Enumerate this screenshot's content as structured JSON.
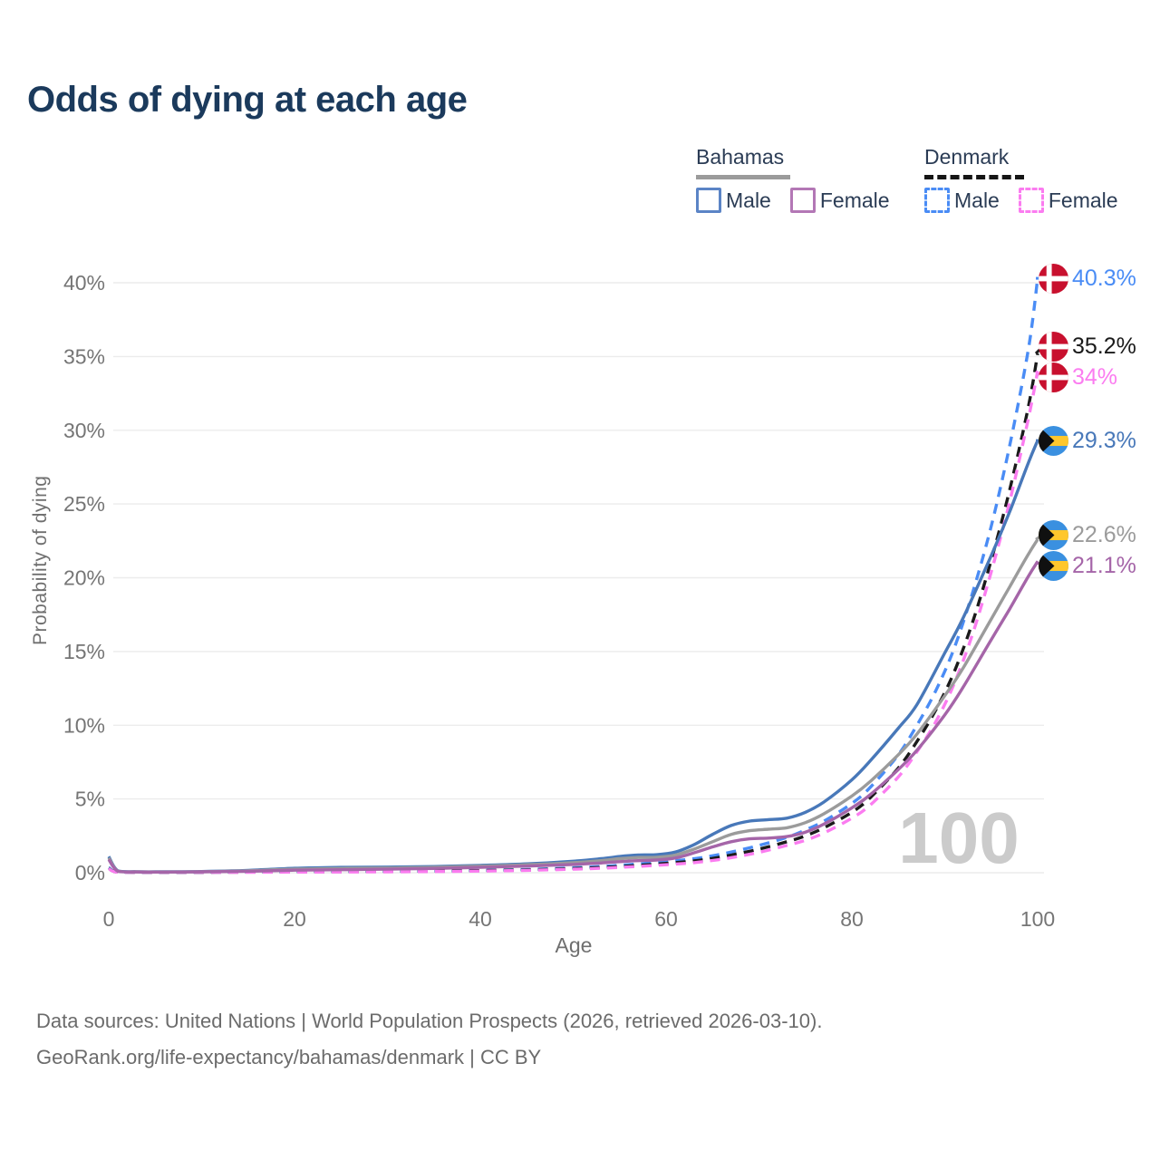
{
  "header": {
    "title": "Odds of dying at each age"
  },
  "legend": {
    "groups": [
      {
        "country": "Bahamas",
        "style": "solid",
        "items": [
          {
            "label": "Male"
          },
          {
            "label": "Female"
          }
        ]
      },
      {
        "country": "Denmark",
        "style": "dashed",
        "items": [
          {
            "label": "Male"
          },
          {
            "label": "Female"
          }
        ]
      }
    ]
  },
  "chart_data": {
    "type": "line",
    "title": "Odds of dying at each age",
    "xlabel": "Age",
    "ylabel": "Probability of dying",
    "xlim": [
      0,
      100
    ],
    "ylim_pct": [
      0,
      40
    ],
    "x_ticks": [
      0,
      20,
      40,
      60,
      80,
      100
    ],
    "y_ticks_pct": [
      0,
      5,
      10,
      15,
      20,
      25,
      30,
      35,
      40
    ],
    "y_tick_suffix": "%",
    "grid": "horizontal",
    "legend_position": "top-right",
    "watermark": "100",
    "colors": {
      "grid": "#ececec",
      "tick_text": "#757575",
      "watermark": "#cbcbcb",
      "denmark_flag_red": "#c8102e",
      "bahamas_flag_blue": "#3a90e0",
      "bahamas_flag_gold": "#ffc72c",
      "bahamas_flag_black": "#101010"
    },
    "series": [
      {
        "name": "Denmark Male",
        "country": "denmark",
        "style": "dashed",
        "color": "#4a8cf5",
        "end_label": "40.3%",
        "points": [
          [
            0,
            0.35
          ],
          [
            1,
            0.04
          ],
          [
            5,
            0.03
          ],
          [
            10,
            0.03
          ],
          [
            15,
            0.05
          ],
          [
            20,
            0.08
          ],
          [
            25,
            0.09
          ],
          [
            30,
            0.1
          ],
          [
            35,
            0.12
          ],
          [
            40,
            0.16
          ],
          [
            45,
            0.22
          ],
          [
            50,
            0.33
          ],
          [
            55,
            0.5
          ],
          [
            60,
            0.75
          ],
          [
            63,
            0.95
          ],
          [
            65,
            1.15
          ],
          [
            67,
            1.4
          ],
          [
            70,
            1.85
          ],
          [
            73,
            2.4
          ],
          [
            75,
            2.9
          ],
          [
            77,
            3.5
          ],
          [
            80,
            4.7
          ],
          [
            82,
            5.8
          ],
          [
            85,
            8.0
          ],
          [
            87,
            10.0
          ],
          [
            89,
            12.3
          ],
          [
            91,
            15.2
          ],
          [
            93,
            19.0
          ],
          [
            95,
            23.5
          ],
          [
            97,
            29.0
          ],
          [
            99,
            35.5
          ],
          [
            100,
            40.3
          ]
        ]
      },
      {
        "name": "Denmark",
        "country": "denmark",
        "style": "dashed",
        "color": "#1a1a1a",
        "end_label": "35.2%",
        "points": [
          [
            0,
            0.3
          ],
          [
            1,
            0.035
          ],
          [
            5,
            0.02
          ],
          [
            10,
            0.02
          ],
          [
            15,
            0.04
          ],
          [
            20,
            0.06
          ],
          [
            25,
            0.07
          ],
          [
            30,
            0.09
          ],
          [
            35,
            0.11
          ],
          [
            40,
            0.14
          ],
          [
            45,
            0.19
          ],
          [
            50,
            0.28
          ],
          [
            55,
            0.42
          ],
          [
            60,
            0.63
          ],
          [
            63,
            0.8
          ],
          [
            65,
            0.97
          ],
          [
            67,
            1.2
          ],
          [
            70,
            1.6
          ],
          [
            73,
            2.1
          ],
          [
            75,
            2.5
          ],
          [
            77,
            3.05
          ],
          [
            80,
            4.1
          ],
          [
            82,
            5.1
          ],
          [
            85,
            7.1
          ],
          [
            87,
            8.9
          ],
          [
            89,
            11.0
          ],
          [
            91,
            13.6
          ],
          [
            93,
            17.0
          ],
          [
            95,
            21.2
          ],
          [
            97,
            26.0
          ],
          [
            99,
            31.6
          ],
          [
            100,
            35.2
          ]
        ]
      },
      {
        "name": "Denmark Female",
        "country": "denmark",
        "style": "dashed",
        "color": "#fb7cf0",
        "end_label": "34%",
        "points": [
          [
            0,
            0.28
          ],
          [
            1,
            0.03
          ],
          [
            5,
            0.02
          ],
          [
            10,
            0.02
          ],
          [
            15,
            0.03
          ],
          [
            20,
            0.04
          ],
          [
            25,
            0.05
          ],
          [
            30,
            0.06
          ],
          [
            35,
            0.08
          ],
          [
            40,
            0.11
          ],
          [
            45,
            0.16
          ],
          [
            50,
            0.24
          ],
          [
            55,
            0.36
          ],
          [
            60,
            0.54
          ],
          [
            63,
            0.68
          ],
          [
            65,
            0.83
          ],
          [
            67,
            1.02
          ],
          [
            70,
            1.38
          ],
          [
            73,
            1.85
          ],
          [
            75,
            2.2
          ],
          [
            77,
            2.7
          ],
          [
            80,
            3.7
          ],
          [
            82,
            4.6
          ],
          [
            85,
            6.5
          ],
          [
            87,
            8.2
          ],
          [
            89,
            10.2
          ],
          [
            91,
            12.8
          ],
          [
            93,
            16.2
          ],
          [
            95,
            20.4
          ],
          [
            97,
            25.2
          ],
          [
            99,
            30.8
          ],
          [
            100,
            34.0
          ]
        ]
      },
      {
        "name": "Bahamas Male",
        "country": "bahamas",
        "style": "solid",
        "color": "#4878b9",
        "end_label": "29.3%",
        "points": [
          [
            0,
            1.1
          ],
          [
            1,
            0.12
          ],
          [
            3,
            0.07
          ],
          [
            5,
            0.06
          ],
          [
            10,
            0.08
          ],
          [
            15,
            0.16
          ],
          [
            20,
            0.3
          ],
          [
            25,
            0.36
          ],
          [
            30,
            0.38
          ],
          [
            35,
            0.42
          ],
          [
            40,
            0.5
          ],
          [
            45,
            0.6
          ],
          [
            50,
            0.78
          ],
          [
            53,
            0.95
          ],
          [
            55,
            1.1
          ],
          [
            57,
            1.2
          ],
          [
            59,
            1.22
          ],
          [
            61,
            1.4
          ],
          [
            63,
            1.9
          ],
          [
            65,
            2.6
          ],
          [
            67,
            3.2
          ],
          [
            69,
            3.5
          ],
          [
            71,
            3.6
          ],
          [
            73,
            3.7
          ],
          [
            75,
            4.1
          ],
          [
            77,
            4.8
          ],
          [
            80,
            6.3
          ],
          [
            82,
            7.6
          ],
          [
            85,
            9.8
          ],
          [
            87,
            11.4
          ],
          [
            90,
            14.9
          ],
          [
            92,
            17.3
          ],
          [
            95,
            21.5
          ],
          [
            97,
            24.5
          ],
          [
            99,
            27.8
          ],
          [
            100,
            29.3
          ]
        ]
      },
      {
        "name": "Bahamas",
        "country": "bahamas",
        "style": "solid",
        "color": "#9b9b9b",
        "end_label": "22.6%",
        "points": [
          [
            0,
            1.0
          ],
          [
            1,
            0.1
          ],
          [
            3,
            0.06
          ],
          [
            5,
            0.05
          ],
          [
            10,
            0.07
          ],
          [
            15,
            0.13
          ],
          [
            20,
            0.24
          ],
          [
            25,
            0.29
          ],
          [
            30,
            0.32
          ],
          [
            35,
            0.36
          ],
          [
            40,
            0.44
          ],
          [
            45,
            0.54
          ],
          [
            50,
            0.68
          ],
          [
            53,
            0.82
          ],
          [
            55,
            0.95
          ],
          [
            57,
            1.03
          ],
          [
            59,
            1.05
          ],
          [
            61,
            1.2
          ],
          [
            63,
            1.6
          ],
          [
            65,
            2.1
          ],
          [
            67,
            2.6
          ],
          [
            69,
            2.85
          ],
          [
            71,
            2.95
          ],
          [
            73,
            3.05
          ],
          [
            75,
            3.4
          ],
          [
            77,
            4.0
          ],
          [
            80,
            5.2
          ],
          [
            82,
            6.2
          ],
          [
            85,
            8.0
          ],
          [
            87,
            9.4
          ],
          [
            90,
            12.0
          ],
          [
            92,
            13.9
          ],
          [
            95,
            17.2
          ],
          [
            97,
            19.4
          ],
          [
            99,
            21.6
          ],
          [
            100,
            22.6
          ]
        ]
      },
      {
        "name": "Bahamas Female",
        "country": "bahamas",
        "style": "solid",
        "color": "#a565a8",
        "end_label": "21.1%",
        "points": [
          [
            0,
            0.9
          ],
          [
            1,
            0.09
          ],
          [
            3,
            0.05
          ],
          [
            5,
            0.04
          ],
          [
            10,
            0.06
          ],
          [
            15,
            0.1
          ],
          [
            20,
            0.17
          ],
          [
            25,
            0.2
          ],
          [
            30,
            0.24
          ],
          [
            35,
            0.29
          ],
          [
            40,
            0.36
          ],
          [
            45,
            0.45
          ],
          [
            50,
            0.56
          ],
          [
            53,
            0.66
          ],
          [
            55,
            0.75
          ],
          [
            57,
            0.82
          ],
          [
            59,
            0.86
          ],
          [
            61,
            1.0
          ],
          [
            63,
            1.35
          ],
          [
            65,
            1.75
          ],
          [
            67,
            2.1
          ],
          [
            69,
            2.3
          ],
          [
            71,
            2.35
          ],
          [
            73,
            2.45
          ],
          [
            75,
            2.75
          ],
          [
            77,
            3.3
          ],
          [
            80,
            4.4
          ],
          [
            82,
            5.3
          ],
          [
            85,
            7.0
          ],
          [
            87,
            8.3
          ],
          [
            90,
            10.7
          ],
          [
            92,
            12.6
          ],
          [
            95,
            15.8
          ],
          [
            97,
            17.9
          ],
          [
            99,
            20.1
          ],
          [
            100,
            21.1
          ]
        ]
      }
    ]
  },
  "footer": {
    "line1": "Data sources: United Nations | World Population Prospects (2026, retrieved 2026-03-10).",
    "line2": "GeoRank.org/life-expectancy/bahamas/denmark | CC BY"
  }
}
